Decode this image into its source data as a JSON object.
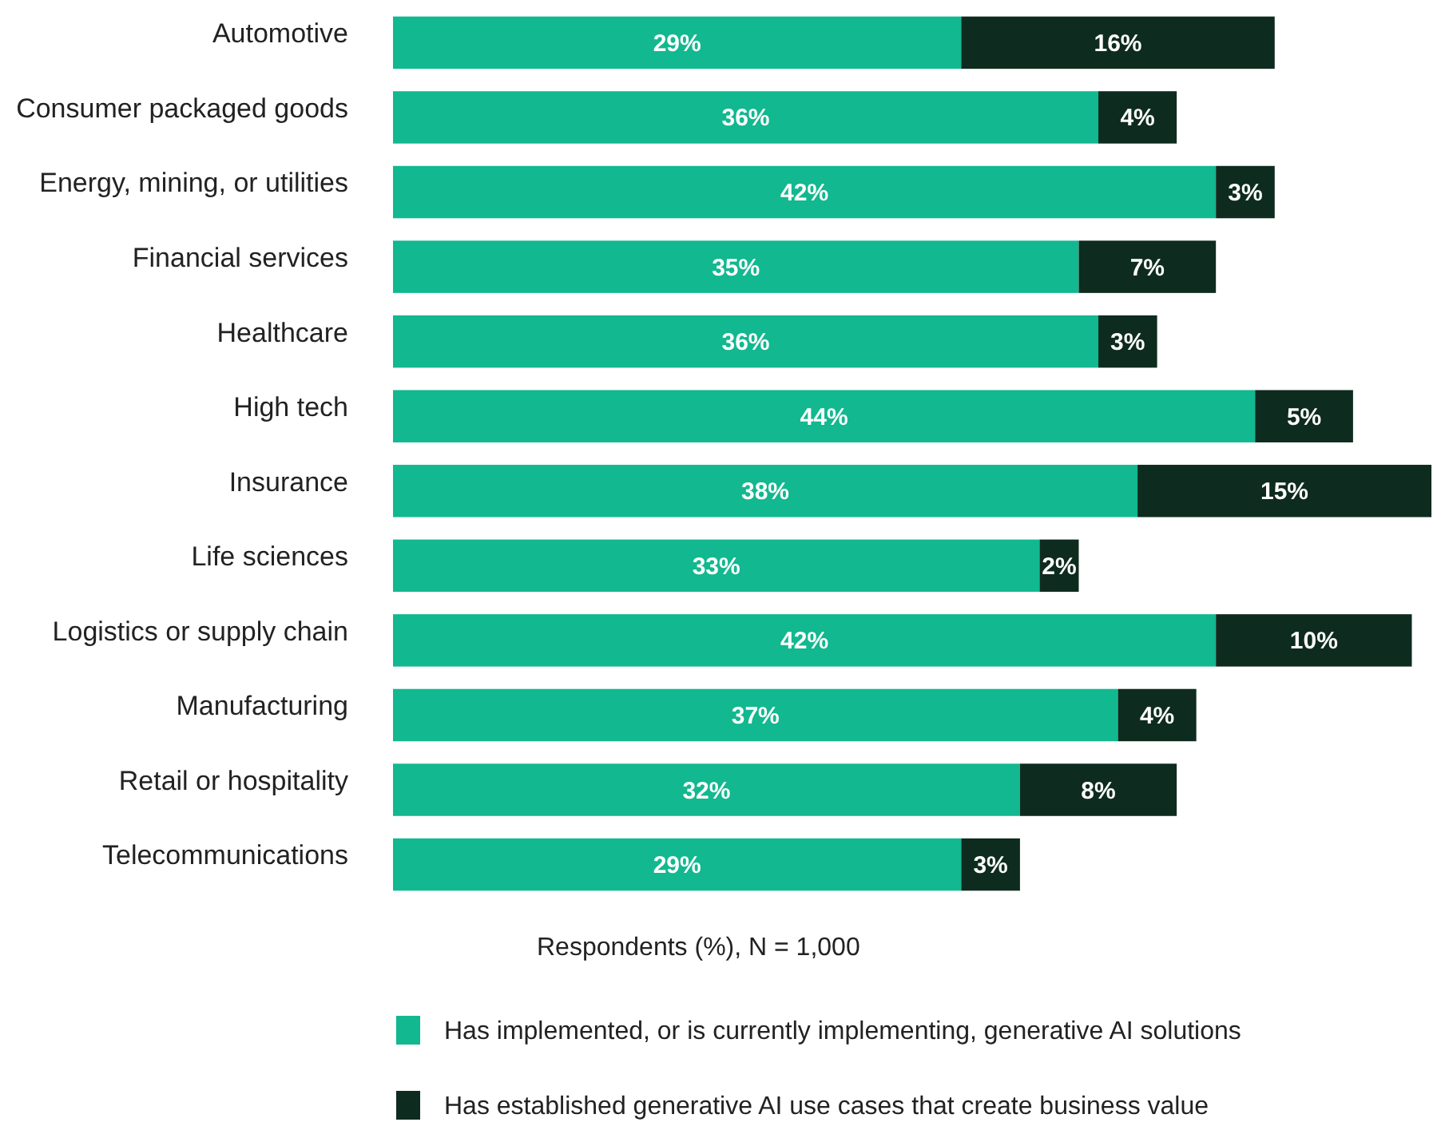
{
  "chart_data": {
    "type": "bar",
    "orientation": "horizontal",
    "stacked": true,
    "legend": "bottom",
    "xlabel": "Respondents (%), N = 1,000",
    "categories": [
      "Automotive",
      "Consumer packaged goods",
      "Energy, mining, or utilities",
      "Financial services",
      "Healthcare",
      "High tech",
      "Insurance",
      "Life sciences",
      "Logistics or supply chain",
      "Manufacturing",
      "Retail or hospitality",
      "Telecommunications"
    ],
    "series": [
      {
        "name": "Has implemented, or is currently implementing, generative AI solutions",
        "color": "#12b88f",
        "values": [
          29,
          36,
          42,
          35,
          36,
          44,
          38,
          33,
          42,
          37,
          32,
          29
        ],
        "value_labels": [
          "29%",
          "36%",
          "42%",
          "35%",
          "36%",
          "44%",
          "38%",
          "33%",
          "42%",
          "37%",
          "32%",
          "29%"
        ]
      },
      {
        "name": "Has established generative AI use cases that create business value",
        "color": "#0e2b1f",
        "values": [
          16,
          4,
          3,
          7,
          3,
          5,
          15,
          2,
          10,
          4,
          8,
          3
        ],
        "value_labels": [
          "16%",
          "4%",
          "3%",
          "7%",
          "3%",
          "5%",
          "15%",
          "2%",
          "10%",
          "4%",
          "8%",
          "3%"
        ]
      }
    ]
  }
}
